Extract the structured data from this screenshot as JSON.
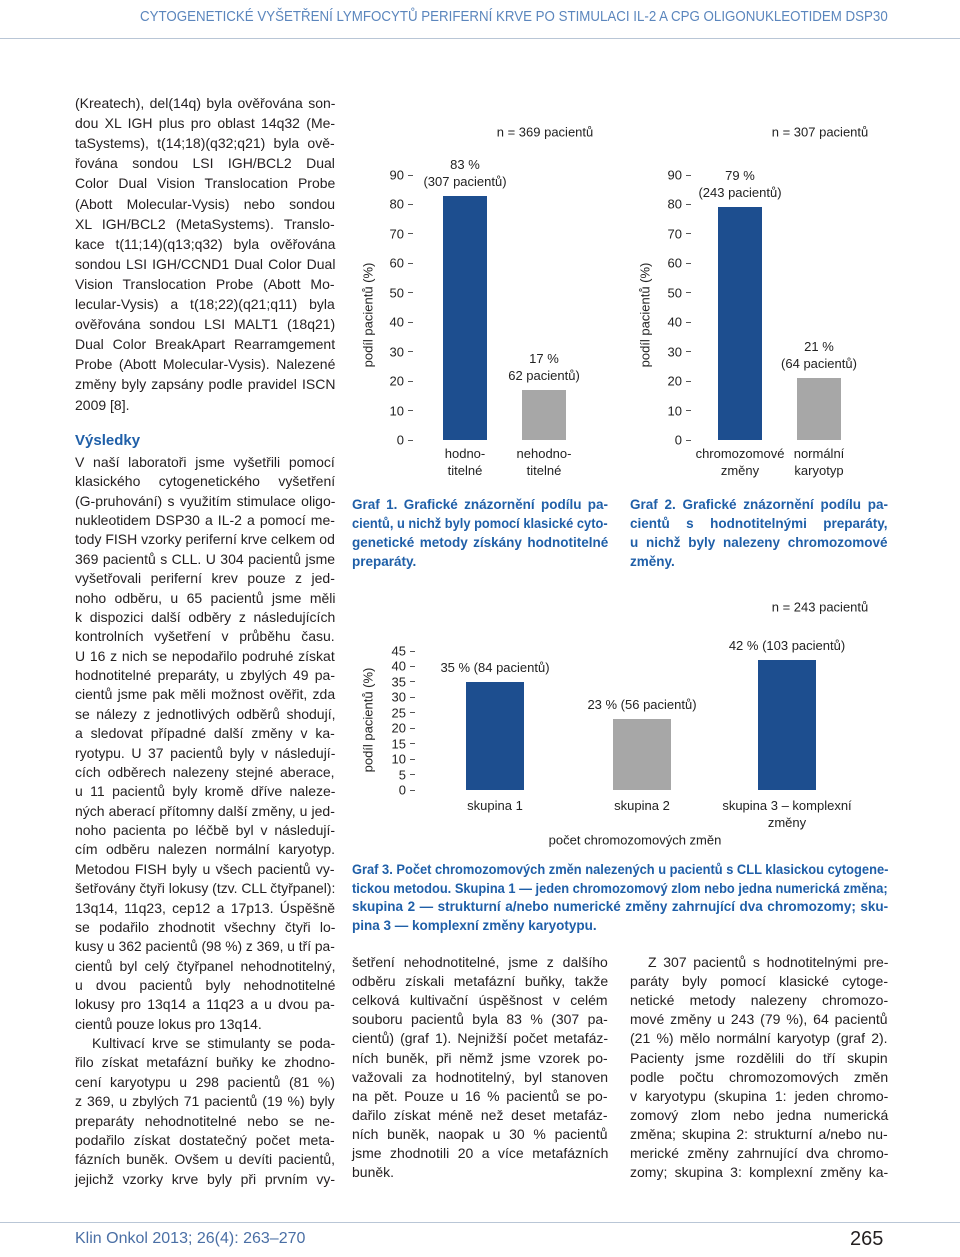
{
  "header": {
    "title": "CYTOGENETICKÉ VYŠETŘENÍ LYMFOCYTŮ PERIFERNÍ KRVE PO STIMULACI IL-2 A CPG OLIGONUKLEOTIDEM DSP30"
  },
  "left_column": {
    "intro": [
      "(Kreatech), del(14q) byla ověřována son-",
      "dou XL IGH plus pro oblast 14q32 (Me-",
      "taSystems), t(14;18)(q32;q21) byla ově-",
      "řována sondou LSI IGH/BCL2 Dual",
      "Color Dual Vision Translocation Probe",
      "(Abott Molecular-Vysis) nebo sondou",
      "XL IGH/BCL2 (MetaSystems). Translo-",
      "kace t(11;14)(q13;q32) byla ověřována",
      "sondou LSI IGH/CCND1 Dual Color Dual",
      "Vision Translocation Probe (Abott Mo-",
      "lecular-Vysis) a t(18;22)(q21;q11) byla",
      "ověřována sondou LSI MALT1 (18q21)",
      "Dual Color BreakApart Rearramgement",
      "Probe (Abott Molecular-Vysis). Nalezené",
      "změny byly zapsány podle pravidel ISCN",
      "2009 [8]."
    ],
    "heading": "Výsledky",
    "results": [
      "V naší laboratoři jsme vyšetřili pomocí",
      "klasického cytogenetického vyšetření",
      "(G-pruhování) s využitím stimulace oligo-",
      "nukleotidem DSP30 a IL-2 a pomocí me-",
      "tody FISH vzorky periferní krve celkem od",
      "369 pacientů s CLL. U 304 pacientů jsme",
      "vyšetřovali periferní krev pouze z jed-",
      "noho odběru, u 65 pacientů jsme měli",
      "k dispozici další odběry z následujících",
      "kontrolních vyšetření v průběhu času.",
      "U 16 z nich se nepodařilo podruhé získat",
      "hodnotitelné preparáty, u zbylých 49 pa-",
      "cientů jsme pak měli možnost ověřit, zda",
      "se nálezy z jednotlivých odběrů shodují,",
      "a sledovat případné další změny v ka-",
      "ryotypu. U 37 pacientů byly v následují-",
      "cích odběrech nalezeny stejné aberace,",
      "u 11 pacientů byly kromě dříve naleze-",
      "ných aberací přítomny další změny, u jed-",
      "noho pacienta po léčbě byl v následují-",
      "cím odběru nalezen normální karyotyp.",
      "Metodou FISH byly u všech pacientů vy-",
      "šetřovány čtyři lokusy (tzv. CLL čtyřpanel):",
      "13q14, 11q23, cep12 a 17p13. Úspěšně",
      "se podařilo zhodnotit všechny čtyři lo-",
      "kusy u 362 pacientů (98 %) z 369, u tří pa-",
      "cientů byl celý čtyřpanel nehodnotitelný,",
      "u dvou pacientů byly nehodnotitelné",
      "lokusy pro 13q14 a 11q23 a u dvou pa-",
      "cientů pouze lokus pro 13q14."
    ],
    "results_2": [
      "Kultivací krve se stimulanty se poda-",
      "řilo získat metafázní buňky ke zhodno-",
      "cení karyotypu u 298 pacientů (81 %)",
      "z 369, u zbylých 71 pacientů (19 %) byly",
      "preparáty nehodnotitelné nebo se ne-",
      "podařilo získat dostatečný počet meta-",
      "fázních buněk. Ovšem u devíti pacientů,",
      "jejichž vzorky krve byly při prvním vy-"
    ]
  },
  "chart_data": [
    {
      "type": "bar",
      "annotation": "n = 369 pacientů",
      "ylabel": "podíl pacientů (%)",
      "categories": [
        "hodno-\ntitelné",
        "nehodno-\ntitelné"
      ],
      "values": [
        83,
        17
      ],
      "value_labels": [
        "83 %\n(307 pacientů)",
        "17 %\n62 pacientů)"
      ],
      "colors": [
        "#1d4e8f",
        "#a7a7a7"
      ],
      "ylim": [
        0,
        90
      ],
      "yticks": [
        0,
        10,
        20,
        30,
        40,
        50,
        60,
        70,
        80,
        90
      ]
    },
    {
      "type": "bar",
      "annotation": "n = 307 pacientů",
      "ylabel": "podíl pacientů (%)",
      "categories": [
        "chromozomové\nzměny",
        "normální\nkaryotyp"
      ],
      "values": [
        79,
        21
      ],
      "value_labels": [
        "79 %\n(243 pacientů)",
        "21 %\n(64 pacientů)"
      ],
      "colors": [
        "#1d4e8f",
        "#a7a7a7"
      ],
      "ylim": [
        0,
        90
      ],
      "yticks": [
        0,
        10,
        20,
        30,
        40,
        50,
        60,
        70,
        80,
        90
      ]
    },
    {
      "type": "bar",
      "annotation": "n = 243 pacientů",
      "ylabel": "podíl pacientů (%)",
      "xlabel": "počet chromozomových změn",
      "categories": [
        "skupina 1",
        "skupina 2",
        "skupina 3 – komplexní\nzměny"
      ],
      "values": [
        35,
        23,
        42
      ],
      "value_labels": [
        "35 % (84 pacientů)",
        "23 % (56 pacientů)",
        "42 % (103 pacientů)"
      ],
      "colors": [
        "#1d4e8f",
        "#a7a7a7",
        "#1d4e8f"
      ],
      "ylim": [
        0,
        45
      ],
      "yticks": [
        0,
        5,
        10,
        15,
        20,
        25,
        30,
        35,
        40,
        45
      ]
    }
  ],
  "captions": [
    [
      "Graf 1. Grafické znázornění podílu pa-",
      "cientů, u nichž byly pomocí klasické cyto-",
      "genetické metody získány hodnotitelné",
      "preparáty."
    ],
    [
      "Graf 2. Grafické znázornění podílu pa-",
      "cientů s hodnotitelnými preparáty,",
      "u nichž byly nalezeny chromozomové",
      "změny."
    ],
    [
      "Graf 3. Počet chromozomových změn nalezených u pacientů s CLL klasickou cytogene-",
      "tickou metodou. Skupina 1 — jeden chromozomový zlom nebo jedna numerická změna;",
      "skupina 2 — strukturní a/nebo numerické změny zahrnující dva chromozomy; sku-",
      "pina 3 — komplexní změny karyotypu."
    ]
  ],
  "middle_column": [
    "šetření nehodnotitelné, jsme z dalšího",
    "odběru získali metafázní buňky, takže",
    "celková kultivační úspěšnost v celém",
    "souboru pacientů byla 83 % (307 pa-",
    "cientů) (graf 1). Nejnižší počet metafáz-",
    "ních buněk, při němž jsme vzorek po-",
    "važovali za hodnotitelný, byl stanoven",
    "na pět. Pouze u 16 % pacientů se po-",
    "dařilo získat méně než deset metafáz-",
    "ních buněk, naopak u 30 % pacientů",
    "jsme zhodnotili 20 a více metafázních",
    "buněk."
  ],
  "right_column": [
    "Z 307 pacientů s hodnotitelnými pre-",
    "paráty byly pomocí klasické cytoge-",
    "netické metody nalezeny chromozo-",
    "mové změny u 243 (79 %), 64 pacientů",
    "(21 %) mělo normální karyotyp (graf 2).",
    "Pacienty jsme rozdělili do tří skupin",
    "podle počtu chromozomových změn",
    "v karyotypu (skupina 1: jeden chromo-",
    "zomový zlom nebo jedna numerická",
    "změna; skupina 2: strukturní a/nebo nu-",
    "merické změny zahrnující dva chromo-",
    "zomy; skupina 3: komplexní změny ka-"
  ],
  "footer": {
    "citation": "Klin Onkol 2013; 26(4): 263–270",
    "page": "265"
  }
}
